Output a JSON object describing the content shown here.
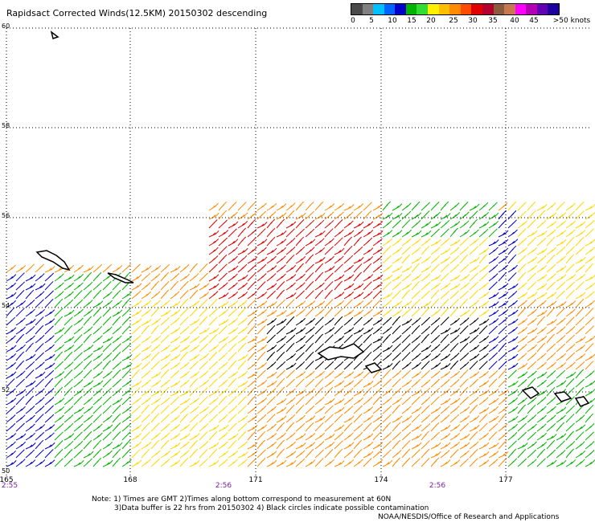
{
  "title": "Rapidsact Corrected Winds(12.5KM) 20150302 descending",
  "legend": {
    "colors": [
      "#4a4a4a",
      "#808080",
      "#00c0ff",
      "#0064ff",
      "#0000c8",
      "#00b400",
      "#32dc32",
      "#fff000",
      "#ffbe00",
      "#ff8c00",
      "#ff4b00",
      "#e10000",
      "#b4002d",
      "#8c5a3c",
      "#c87850",
      "#ff00ff",
      "#b400b4",
      "#6400b4",
      "#1e00a0"
    ],
    "labels": [
      "0",
      "5",
      "10",
      "15",
      "20",
      "25",
      "30",
      "35",
      "40",
      "45",
      ">50 knots"
    ]
  },
  "lat_labels": [
    "60",
    "58",
    "56",
    "54",
    "52",
    "50"
  ],
  "lon_labels": [
    "165",
    "168",
    "171",
    "174",
    "177"
  ],
  "time_labels": [
    "2:55",
    "2:56",
    "2:56"
  ],
  "notes": [
    "Note: 1) Times are GMT 2)Times along bottom correspond to measurement at 60N",
    "3)Data buffer is 22 hrs from 20150302 4) Black circles indicate possible contamination",
    "NOAA/NESDIS/Office of Research and Applications"
  ]
}
